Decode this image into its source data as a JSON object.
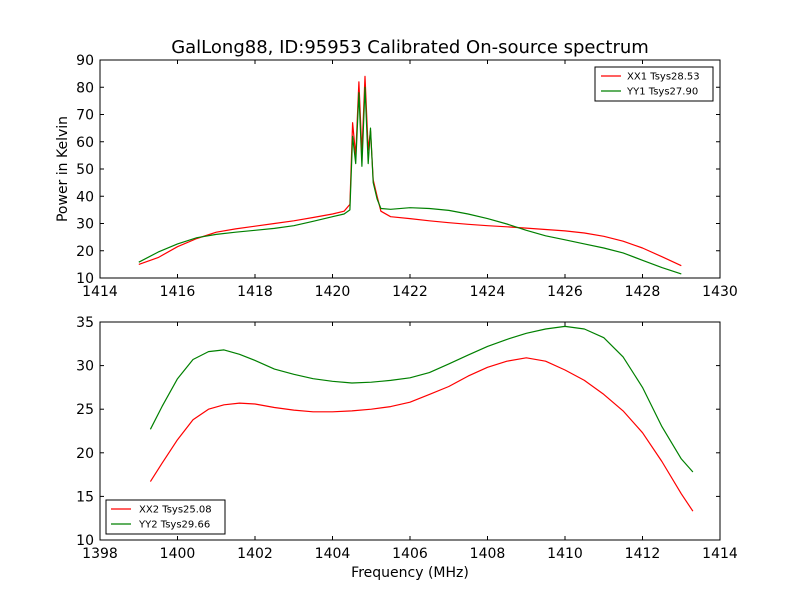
{
  "figure": {
    "title": "GalLong88, ID:95953 Calibrated On-source spectrum",
    "xlabel": "Frequency (MHz)"
  },
  "colors": {
    "xx": "#ff0000",
    "yy": "#008000"
  },
  "chart_data": [
    {
      "type": "line",
      "title": "GalLong88, ID:95953 Calibrated On-source spectrum",
      "xlabel": "",
      "ylabel": "Power in Kelvin",
      "xlim": [
        1414,
        1430
      ],
      "ylim": [
        10,
        90
      ],
      "xticks": [
        1414,
        1416,
        1418,
        1420,
        1422,
        1424,
        1426,
        1428,
        1430
      ],
      "yticks": [
        10,
        20,
        30,
        40,
        50,
        60,
        70,
        80,
        90
      ],
      "grid": false,
      "legend": "top-right",
      "series": [
        {
          "name": "XX1 Tsys28.53",
          "color": "#ff0000",
          "points": [
            [
              1415.0,
              15.0
            ],
            [
              1415.5,
              17.5
            ],
            [
              1416.0,
              21.5
            ],
            [
              1416.5,
              24.5
            ],
            [
              1417.0,
              26.8
            ],
            [
              1417.5,
              28.0
            ],
            [
              1418.0,
              29.0
            ],
            [
              1418.5,
              30.0
            ],
            [
              1419.0,
              31.0
            ],
            [
              1419.5,
              32.2
            ],
            [
              1420.0,
              33.5
            ],
            [
              1420.3,
              34.5
            ],
            [
              1420.45,
              37.0
            ],
            [
              1420.52,
              67.0
            ],
            [
              1420.6,
              55.0
            ],
            [
              1420.68,
              82.0
            ],
            [
              1420.76,
              56.0
            ],
            [
              1420.84,
              84.0
            ],
            [
              1420.92,
              57.0
            ],
            [
              1420.98,
              64.0
            ],
            [
              1421.05,
              46.0
            ],
            [
              1421.15,
              40.0
            ],
            [
              1421.25,
              34.5
            ],
            [
              1421.5,
              32.5
            ],
            [
              1422.0,
              31.8
            ],
            [
              1422.5,
              31.0
            ],
            [
              1423.0,
              30.3
            ],
            [
              1423.5,
              29.7
            ],
            [
              1424.0,
              29.2
            ],
            [
              1424.5,
              28.8
            ],
            [
              1425.0,
              28.3
            ],
            [
              1425.5,
              27.8
            ],
            [
              1426.0,
              27.3
            ],
            [
              1426.5,
              26.5
            ],
            [
              1427.0,
              25.3
            ],
            [
              1427.5,
              23.5
            ],
            [
              1428.0,
              21.0
            ],
            [
              1428.5,
              17.8
            ],
            [
              1429.0,
              14.5
            ]
          ]
        },
        {
          "name": "YY1 Tsys27.90",
          "color": "#008000",
          "points": [
            [
              1415.0,
              15.8
            ],
            [
              1415.5,
              19.5
            ],
            [
              1416.0,
              22.5
            ],
            [
              1416.5,
              24.8
            ],
            [
              1417.0,
              26.0
            ],
            [
              1417.5,
              26.8
            ],
            [
              1418.0,
              27.5
            ],
            [
              1418.5,
              28.2
            ],
            [
              1419.0,
              29.2
            ],
            [
              1419.5,
              30.8
            ],
            [
              1420.0,
              32.5
            ],
            [
              1420.3,
              33.5
            ],
            [
              1420.45,
              35.0
            ],
            [
              1420.52,
              62.0
            ],
            [
              1420.6,
              52.0
            ],
            [
              1420.68,
              78.0
            ],
            [
              1420.76,
              51.0
            ],
            [
              1420.84,
              80.0
            ],
            [
              1420.92,
              52.0
            ],
            [
              1420.98,
              65.0
            ],
            [
              1421.05,
              45.0
            ],
            [
              1421.15,
              39.0
            ],
            [
              1421.25,
              35.5
            ],
            [
              1421.5,
              35.2
            ],
            [
              1422.0,
              35.8
            ],
            [
              1422.5,
              35.5
            ],
            [
              1423.0,
              34.8
            ],
            [
              1423.5,
              33.5
            ],
            [
              1424.0,
              31.8
            ],
            [
              1424.5,
              29.8
            ],
            [
              1425.0,
              27.5
            ],
            [
              1425.5,
              25.5
            ],
            [
              1426.0,
              24.0
            ],
            [
              1426.5,
              22.5
            ],
            [
              1427.0,
              21.0
            ],
            [
              1427.5,
              19.2
            ],
            [
              1428.0,
              16.5
            ],
            [
              1428.5,
              13.8
            ],
            [
              1429.0,
              11.5
            ]
          ]
        }
      ]
    },
    {
      "type": "line",
      "title": "",
      "xlabel": "Frequency (MHz)",
      "ylabel": "",
      "xlim": [
        1398,
        1414
      ],
      "ylim": [
        10,
        35
      ],
      "xticks": [
        1398,
        1400,
        1402,
        1404,
        1406,
        1408,
        1410,
        1412,
        1414
      ],
      "yticks": [
        10,
        15,
        20,
        25,
        30,
        35
      ],
      "grid": false,
      "legend": "bottom-left",
      "series": [
        {
          "name": "XX2 Tsys25.08",
          "color": "#ff0000",
          "points": [
            [
              1399.3,
              16.7
            ],
            [
              1399.6,
              18.8
            ],
            [
              1400.0,
              21.5
            ],
            [
              1400.4,
              23.8
            ],
            [
              1400.8,
              25.0
            ],
            [
              1401.2,
              25.5
            ],
            [
              1401.6,
              25.7
            ],
            [
              1402.0,
              25.6
            ],
            [
              1402.5,
              25.2
            ],
            [
              1403.0,
              24.9
            ],
            [
              1403.5,
              24.7
            ],
            [
              1404.0,
              24.7
            ],
            [
              1404.5,
              24.8
            ],
            [
              1405.0,
              25.0
            ],
            [
              1405.5,
              25.3
            ],
            [
              1406.0,
              25.8
            ],
            [
              1406.5,
              26.7
            ],
            [
              1407.0,
              27.6
            ],
            [
              1407.5,
              28.8
            ],
            [
              1408.0,
              29.8
            ],
            [
              1408.5,
              30.5
            ],
            [
              1409.0,
              30.9
            ],
            [
              1409.5,
              30.5
            ],
            [
              1410.0,
              29.5
            ],
            [
              1410.5,
              28.3
            ],
            [
              1411.0,
              26.7
            ],
            [
              1411.5,
              24.8
            ],
            [
              1412.0,
              22.3
            ],
            [
              1412.5,
              19.0
            ],
            [
              1413.0,
              15.3
            ],
            [
              1413.3,
              13.3
            ]
          ]
        },
        {
          "name": "YY2 Tsys29.66",
          "color": "#008000",
          "points": [
            [
              1399.3,
              22.7
            ],
            [
              1399.6,
              25.3
            ],
            [
              1400.0,
              28.5
            ],
            [
              1400.4,
              30.7
            ],
            [
              1400.8,
              31.6
            ],
            [
              1401.2,
              31.8
            ],
            [
              1401.6,
              31.3
            ],
            [
              1402.0,
              30.6
            ],
            [
              1402.5,
              29.6
            ],
            [
              1403.0,
              29.0
            ],
            [
              1403.5,
              28.5
            ],
            [
              1404.0,
              28.2
            ],
            [
              1404.5,
              28.0
            ],
            [
              1405.0,
              28.1
            ],
            [
              1405.5,
              28.3
            ],
            [
              1406.0,
              28.6
            ],
            [
              1406.5,
              29.2
            ],
            [
              1407.0,
              30.2
            ],
            [
              1407.5,
              31.2
            ],
            [
              1408.0,
              32.2
            ],
            [
              1408.5,
              33.0
            ],
            [
              1409.0,
              33.7
            ],
            [
              1409.5,
              34.2
            ],
            [
              1410.0,
              34.5
            ],
            [
              1410.5,
              34.2
            ],
            [
              1411.0,
              33.2
            ],
            [
              1411.5,
              31.0
            ],
            [
              1412.0,
              27.5
            ],
            [
              1412.5,
              23.0
            ],
            [
              1413.0,
              19.3
            ],
            [
              1413.3,
              17.8
            ]
          ]
        }
      ]
    }
  ]
}
